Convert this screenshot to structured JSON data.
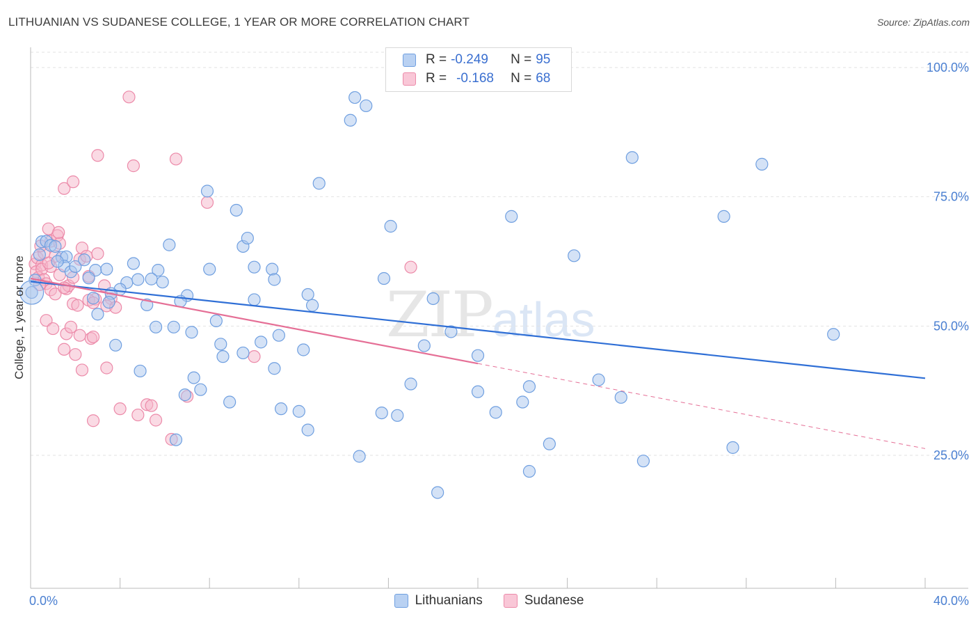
{
  "header": {
    "title": "LITHUANIAN VS SUDANESE COLLEGE, 1 YEAR OR MORE CORRELATION CHART",
    "source": "Source: ZipAtlas.com"
  },
  "legend": {
    "rows": [
      {
        "r_label": "R =",
        "r_value": "-0.249",
        "n_label": "N =",
        "n_value": "95"
      },
      {
        "r_label": "R =",
        "r_value": "-0.168",
        "n_label": "N =",
        "n_value": "68"
      }
    ]
  },
  "watermark": {
    "zip": "ZIP",
    "atlas": "atlas"
  },
  "colors": {
    "blue_fill": "#a9c6ee",
    "blue_stroke": "#6f9fe0",
    "blue_line": "#2f6fd6",
    "pink_fill": "#f6b6ca",
    "pink_stroke": "#ec8aa9",
    "pink_line": "#e56f96",
    "tick_text": "#4a7fd1",
    "grid": "#e2e2e2"
  },
  "chart_data": {
    "type": "scatter",
    "title": "LITHUANIAN VS SUDANESE COLLEGE, 1 YEAR OR MORE CORRELATION CHART",
    "xlabel": "",
    "ylabel": "College, 1 year or more",
    "xlim": [
      0,
      40
    ],
    "ylim": [
      0,
      105
    ],
    "x_tick_labels": [
      {
        "value": 0,
        "label": "0.0%"
      },
      {
        "value": 40,
        "label": "40.0%"
      }
    ],
    "y_tick_labels": [
      {
        "value": 25,
        "label": "25.0%"
      },
      {
        "value": 50,
        "label": "50.0%"
      },
      {
        "value": 75,
        "label": "75.0%"
      },
      {
        "value": 100,
        "label": "100.0%"
      }
    ],
    "grid": true,
    "series": [
      {
        "name": "Lithuanians",
        "color": "blue",
        "trend": {
          "x0": 0,
          "y0": 58.6,
          "x1": 40,
          "y1": 39.9,
          "dashed_from": null
        },
        "points": [
          [
            0.05,
            56.5
          ],
          [
            0.4,
            63.8
          ],
          [
            0.5,
            66.3
          ],
          [
            0.7,
            66.4
          ],
          [
            0.9,
            65.6
          ],
          [
            1.1,
            65.4
          ],
          [
            1.4,
            63.3
          ],
          [
            1.6,
            63.4
          ],
          [
            1.5,
            61.6
          ],
          [
            1.8,
            60.5
          ],
          [
            2.0,
            61.5
          ],
          [
            1.2,
            62.5
          ],
          [
            2.9,
            60.8
          ],
          [
            2.6,
            59.3
          ],
          [
            3.4,
            61.0
          ],
          [
            4.6,
            62.1
          ],
          [
            5.7,
            60.8
          ],
          [
            6.2,
            65.7
          ],
          [
            4.3,
            58.4
          ],
          [
            4.8,
            59.0
          ],
          [
            5.4,
            59.1
          ],
          [
            5.9,
            58.5
          ],
          [
            4.0,
            57.1
          ],
          [
            3.6,
            56.3
          ],
          [
            2.8,
            55.4
          ],
          [
            3.5,
            54.6
          ],
          [
            5.2,
            54.1
          ],
          [
            7.0,
            55.9
          ],
          [
            6.7,
            54.8
          ],
          [
            9.5,
            65.4
          ],
          [
            9.7,
            67.0
          ],
          [
            9.2,
            72.4
          ],
          [
            7.9,
            76.1
          ],
          [
            8.0,
            61.0
          ],
          [
            10.0,
            61.4
          ],
          [
            10.8,
            61.0
          ],
          [
            10.9,
            59.0
          ],
          [
            10.0,
            55.1
          ],
          [
            12.4,
            56.1
          ],
          [
            12.6,
            54.0
          ],
          [
            14.3,
            89.8
          ],
          [
            14.5,
            94.2
          ],
          [
            15.0,
            92.6
          ],
          [
            12.9,
            77.6
          ],
          [
            16.1,
            69.3
          ],
          [
            15.8,
            59.2
          ],
          [
            18.0,
            55.3
          ],
          [
            18.8,
            48.9
          ],
          [
            3.0,
            52.3
          ],
          [
            3.8,
            46.3
          ],
          [
            4.9,
            41.3
          ],
          [
            5.6,
            49.8
          ],
          [
            6.4,
            49.8
          ],
          [
            7.2,
            48.8
          ],
          [
            8.3,
            51.0
          ],
          [
            8.5,
            46.5
          ],
          [
            8.6,
            44.1
          ],
          [
            9.5,
            44.8
          ],
          [
            10.3,
            46.9
          ],
          [
            11.1,
            48.2
          ],
          [
            12.2,
            45.4
          ],
          [
            7.3,
            40.0
          ],
          [
            7.6,
            37.7
          ],
          [
            6.9,
            36.7
          ],
          [
            6.5,
            28.0
          ],
          [
            8.9,
            35.3
          ],
          [
            10.9,
            41.8
          ],
          [
            11.2,
            34.0
          ],
          [
            12.0,
            33.5
          ],
          [
            12.4,
            29.9
          ],
          [
            14.7,
            24.8
          ],
          [
            15.7,
            33.2
          ],
          [
            16.4,
            32.7
          ],
          [
            17.0,
            38.8
          ],
          [
            17.6,
            46.2
          ],
          [
            18.2,
            17.8
          ],
          [
            20.0,
            44.3
          ],
          [
            20.0,
            37.3
          ],
          [
            20.8,
            33.3
          ],
          [
            21.5,
            71.2
          ],
          [
            22.0,
            35.3
          ],
          [
            22.3,
            38.3
          ],
          [
            22.3,
            21.9
          ],
          [
            23.2,
            27.2
          ],
          [
            24.3,
            63.6
          ],
          [
            25.4,
            39.6
          ],
          [
            26.4,
            36.2
          ],
          [
            26.9,
            82.6
          ],
          [
            27.4,
            23.9
          ],
          [
            31.0,
            71.2
          ],
          [
            31.4,
            26.5
          ],
          [
            32.7,
            81.3
          ],
          [
            35.9,
            48.4
          ],
          [
            0.2,
            58.9
          ],
          [
            2.4,
            62.8
          ]
        ]
      },
      {
        "name": "Sudanese",
        "color": "pink",
        "trend": {
          "x0": 0,
          "y0": 59.2,
          "x1": 40,
          "y1": 26.3,
          "dashed_from": 20.0
        },
        "points": [
          [
            0.2,
            62.0
          ],
          [
            0.3,
            63.2
          ],
          [
            0.25,
            60.5
          ],
          [
            0.35,
            59.4
          ],
          [
            0.5,
            61.8
          ],
          [
            0.5,
            61.0
          ],
          [
            0.6,
            64.1
          ],
          [
            0.8,
            68.8
          ],
          [
            0.9,
            66.4
          ],
          [
            1.2,
            67.5
          ],
          [
            1.3,
            66.0
          ],
          [
            1.1,
            63.5
          ],
          [
            0.9,
            61.5
          ],
          [
            0.6,
            59.0
          ],
          [
            0.7,
            58.2
          ],
          [
            0.9,
            57.0
          ],
          [
            1.1,
            56.2
          ],
          [
            1.3,
            59.9
          ],
          [
            1.6,
            57.2
          ],
          [
            1.7,
            57.8
          ],
          [
            1.9,
            59.4
          ],
          [
            1.5,
            57.4
          ],
          [
            2.3,
            65.1
          ],
          [
            2.2,
            62.9
          ],
          [
            2.5,
            63.5
          ],
          [
            3.0,
            64.0
          ],
          [
            3.3,
            57.8
          ],
          [
            3.6,
            55.3
          ],
          [
            2.9,
            55.2
          ],
          [
            2.6,
            55.0
          ],
          [
            1.9,
            54.3
          ],
          [
            2.1,
            54.0
          ],
          [
            2.8,
            54.5
          ],
          [
            3.4,
            53.9
          ],
          [
            3.8,
            53.6
          ],
          [
            0.7,
            51.1
          ],
          [
            1.0,
            49.5
          ],
          [
            1.6,
            48.5
          ],
          [
            1.8,
            49.8
          ],
          [
            2.2,
            48.2
          ],
          [
            2.7,
            47.6
          ],
          [
            2.8,
            47.9
          ],
          [
            1.5,
            45.5
          ],
          [
            2.0,
            44.5
          ],
          [
            3.4,
            41.9
          ],
          [
            2.3,
            41.5
          ],
          [
            1.5,
            76.6
          ],
          [
            1.9,
            77.9
          ],
          [
            3.0,
            83.0
          ],
          [
            4.4,
            94.3
          ],
          [
            4.6,
            81.0
          ],
          [
            6.5,
            82.3
          ],
          [
            7.9,
            73.9
          ],
          [
            4.0,
            34.0
          ],
          [
            4.8,
            32.8
          ],
          [
            5.2,
            34.8
          ],
          [
            5.4,
            34.6
          ],
          [
            5.6,
            31.8
          ],
          [
            2.8,
            31.7
          ],
          [
            6.3,
            28.1
          ],
          [
            7.0,
            36.4
          ],
          [
            10.0,
            44.1
          ],
          [
            17.0,
            61.4
          ],
          [
            0.45,
            65.5
          ],
          [
            0.8,
            62.2
          ],
          [
            1.25,
            68.1
          ],
          [
            0.4,
            58.0
          ],
          [
            2.6,
            59.6
          ]
        ]
      }
    ]
  },
  "bottom_legend": [
    {
      "label": "Lithuanians"
    },
    {
      "label": "Sudanese"
    }
  ]
}
